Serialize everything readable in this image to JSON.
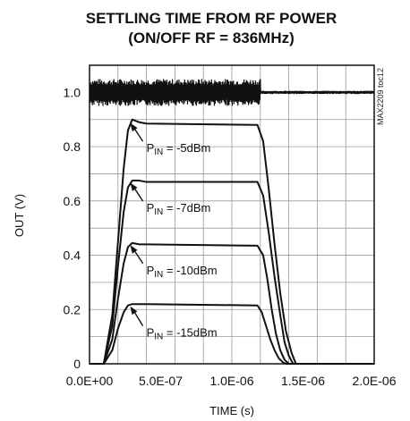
{
  "chart_data": {
    "type": "line",
    "title": [
      "SETTLING TIME FROM RF POWER",
      "(ON/OFF RF = 836MHz)"
    ],
    "xlabel": "TIME (s)",
    "ylabel": "OUT (V)",
    "xlim": [
      0,
      2e-06
    ],
    "ylim": [
      0,
      1.1
    ],
    "x_ticks": [
      0,
      5e-07,
      1e-06,
      1.5e-06,
      2e-06
    ],
    "x_tick_labels": [
      "0.0E+00",
      "5.0E-07",
      "1.0E-06",
      "1.5E-06",
      "2.0E-06"
    ],
    "y_ticks": [
      0,
      0.2,
      0.4,
      0.6,
      0.8,
      1.0
    ],
    "y_tick_labels": [
      "0",
      "0.2",
      "0.4",
      "0.6",
      "0.8",
      "1.0"
    ],
    "grid": true,
    "side_note": "MAX2209 toc12",
    "rf_signal": {
      "level": 1.0,
      "burst_start": 0,
      "burst_end": 1.2e-06,
      "burst_amplitude": 0.05,
      "quiet_amplitude": 0.006
    },
    "series": [
      {
        "annotation": "P_IN = -5dBm",
        "label_main": "P",
        "label_sub": "IN",
        "label_rest": " = -5dBm",
        "x": [
          0,
          1e-07,
          1.6e-07,
          2e-07,
          2.4e-07,
          2.7e-07,
          3e-07,
          3.5e-07,
          4e-07,
          1.18e-06,
          1.22e-06,
          1.26e-06,
          1.3e-06,
          1.34e-06,
          1.38e-06,
          1.42e-06,
          1.45e-06,
          2e-06
        ],
        "y": [
          0,
          0,
          0.18,
          0.45,
          0.72,
          0.86,
          0.9,
          0.89,
          0.885,
          0.88,
          0.82,
          0.64,
          0.44,
          0.26,
          0.12,
          0.04,
          0,
          0
        ]
      },
      {
        "annotation": "P_IN = -7dBm",
        "label_main": "P",
        "label_sub": "IN",
        "label_rest": " = -7dBm",
        "x": [
          0,
          1e-07,
          1.6e-07,
          2e-07,
          2.4e-07,
          2.7e-07,
          3e-07,
          3.5e-07,
          4e-07,
          1.18e-06,
          1.22e-06,
          1.26e-06,
          1.3e-06,
          1.34e-06,
          1.37e-06,
          1.4e-06,
          1.43e-06,
          2e-06
        ],
        "y": [
          0,
          0,
          0.14,
          0.36,
          0.56,
          0.65,
          0.675,
          0.675,
          0.67,
          0.67,
          0.62,
          0.48,
          0.32,
          0.18,
          0.08,
          0.03,
          0,
          0
        ]
      },
      {
        "annotation": "P_IN = -10dBm",
        "label_main": "P",
        "label_sub": "IN",
        "label_rest": " = -10dBm",
        "x": [
          0,
          1e-07,
          1.6e-07,
          2e-07,
          2.4e-07,
          2.7e-07,
          3e-07,
          3.5e-07,
          4e-07,
          1.18e-06,
          1.22e-06,
          1.25e-06,
          1.28e-06,
          1.31e-06,
          1.34e-06,
          1.37e-06,
          1.4e-06,
          2e-06
        ],
        "y": [
          0,
          0,
          0.09,
          0.24,
          0.37,
          0.43,
          0.445,
          0.44,
          0.44,
          0.435,
          0.4,
          0.31,
          0.2,
          0.11,
          0.05,
          0.015,
          0,
          0
        ]
      },
      {
        "annotation": "P_IN = -15dBm",
        "label_main": "P",
        "label_sub": "IN",
        "label_rest": " = -15dBm",
        "x": [
          0,
          1e-07,
          1.6e-07,
          2e-07,
          2.4e-07,
          2.7e-07,
          3e-07,
          3.5e-07,
          4e-07,
          1.18e-06,
          1.21e-06,
          1.24e-06,
          1.27e-06,
          1.3e-06,
          1.33e-06,
          1.36e-06,
          1.38e-06,
          2e-06
        ],
        "y": [
          0,
          0,
          0.05,
          0.13,
          0.19,
          0.215,
          0.22,
          0.22,
          0.22,
          0.215,
          0.19,
          0.14,
          0.09,
          0.05,
          0.02,
          0.005,
          0,
          0
        ]
      }
    ],
    "annotation_points": [
      {
        "x": 2.8e-07,
        "y": 0.89
      },
      {
        "x": 2.8e-07,
        "y": 0.67
      },
      {
        "x": 2.8e-07,
        "y": 0.44
      },
      {
        "x": 2.8e-07,
        "y": 0.215
      }
    ],
    "annotation_text_positions": [
      {
        "x": 4e-07,
        "y": 0.78
      },
      {
        "x": 4e-07,
        "y": 0.56
      },
      {
        "x": 4e-07,
        "y": 0.33
      },
      {
        "x": 4e-07,
        "y": 0.1
      }
    ]
  }
}
